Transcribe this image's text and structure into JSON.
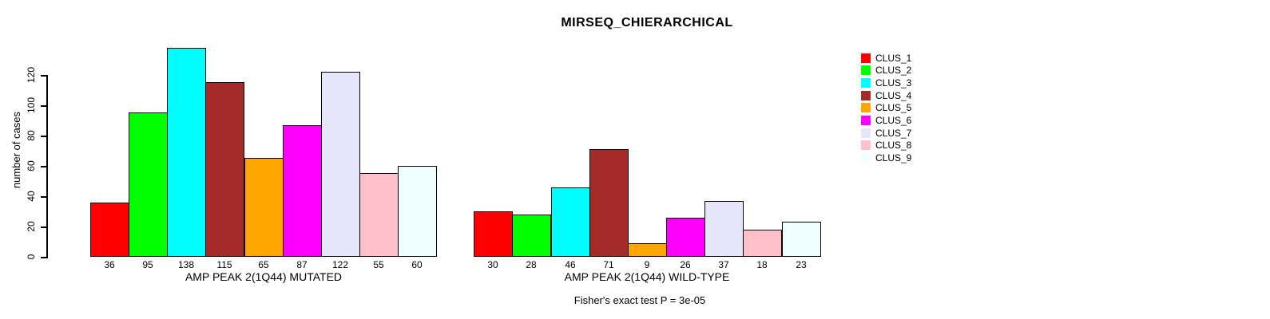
{
  "title": "MIRSEQ_CHIERARCHICAL",
  "footer": "Fisher's exact test P = 3e-05",
  "y_axis": {
    "label": "number of cases",
    "ticks": [
      0,
      20,
      40,
      60,
      80,
      100,
      120
    ]
  },
  "legend": {
    "position": "right",
    "items": [
      {
        "label": "CLUS_1",
        "color": "#FF0000"
      },
      {
        "label": "CLUS_2",
        "color": "#00FF00"
      },
      {
        "label": "CLUS_3",
        "color": "#00FFFF"
      },
      {
        "label": "CLUS_4",
        "color": "#A52A2A"
      },
      {
        "label": "CLUS_5",
        "color": "#FFA500"
      },
      {
        "label": "CLUS_6",
        "color": "#FF00FF"
      },
      {
        "label": "CLUS_7",
        "color": "#E6E6FA"
      },
      {
        "label": "CLUS_8",
        "color": "#FFC0CB"
      },
      {
        "label": "CLUS_9",
        "color": "#F0FFFF"
      }
    ]
  },
  "chart_data": [
    {
      "type": "bar",
      "xlabel": "AMP PEAK  2(1Q44) MUTATED",
      "categories": [
        "CLUS_1",
        "CLUS_2",
        "CLUS_3",
        "CLUS_4",
        "CLUS_5",
        "CLUS_6",
        "CLUS_7",
        "CLUS_8",
        "CLUS_9"
      ],
      "values": [
        36,
        95,
        138,
        115,
        65,
        87,
        122,
        55,
        60
      ],
      "colors": [
        "#FF0000",
        "#00FF00",
        "#00FFFF",
        "#A52A2A",
        "#FFA500",
        "#FF00FF",
        "#E6E6FA",
        "#FFC0CB",
        "#F0FFFF"
      ],
      "ylabel": "number of cases",
      "ylim": [
        0,
        140
      ],
      "grid": false,
      "bar_value_labels_shown_on_x_axis": true
    },
    {
      "type": "bar",
      "xlabel": "AMP PEAK  2(1Q44) WILD-TYPE",
      "categories": [
        "CLUS_1",
        "CLUS_2",
        "CLUS_3",
        "CLUS_4",
        "CLUS_5",
        "CLUS_6",
        "CLUS_7",
        "CLUS_8",
        "CLUS_9"
      ],
      "values": [
        30,
        28,
        46,
        71,
        9,
        26,
        37,
        18,
        23
      ],
      "colors": [
        "#FF0000",
        "#00FF00",
        "#00FFFF",
        "#A52A2A",
        "#FFA500",
        "#FF00FF",
        "#E6E6FA",
        "#FFC0CB",
        "#F0FFFF"
      ],
      "ylabel": "",
      "ylim": [
        0,
        140
      ],
      "grid": false,
      "bar_value_labels_shown_on_x_axis": true
    }
  ]
}
